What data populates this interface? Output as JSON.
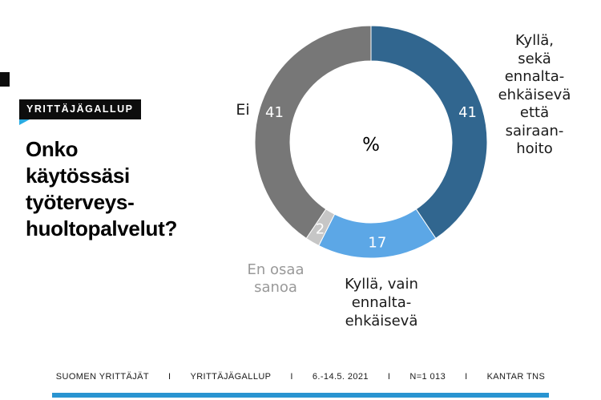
{
  "brand": {
    "badge_label": "YRITTÄJÄGALLUP",
    "accent_color": "#29ABE2",
    "badge_bg_color": "#0D0D0D"
  },
  "title": "Onko\nkäytössäsi\ntyöterveys-\nhuoltopalvelut?",
  "chart_data": {
    "type": "pie",
    "variant": "donut",
    "center_label": "%",
    "start_angle_deg": 0,
    "direction": "clockwise",
    "categories": [
      "Kyllä, sekä ennalta-ehkäisevä että sairaanhoito",
      "Kyllä, vain ennalta-ehkäisevä",
      "En osaa sanoa",
      "Ei"
    ],
    "values": [
      41,
      17,
      2,
      41
    ],
    "slices": [
      {
        "label": "Kyllä, sekä ennalta-ehkäisevä että sairaanhoito",
        "value": 41,
        "value_label": "41",
        "color": "#31668F"
      },
      {
        "label": "Kyllä, vain ennalta-ehkäisevä",
        "value": 17,
        "value_label": "17",
        "color": "#5CA7E6"
      },
      {
        "label": "En osaa sanoa",
        "value": 2,
        "value_label": "2",
        "color": "#C6C6C6"
      },
      {
        "label": "Ei",
        "value": 41,
        "value_label": "41",
        "color": "#777777"
      }
    ],
    "external_labels": {
      "right": "Kyllä,\nsekä\nennalta-\nehkäisevä\nettä\nsairaan-\nhoito",
      "bottom": "Kyllä, vain\nennalta-\nehkäisevä",
      "bottom_left": "En osaa\nsanoa",
      "left": "Ei"
    },
    "legend_position": "around",
    "value_label_color": "#FFFFFF",
    "muted_label_color": "#999999"
  },
  "footer": {
    "items": [
      "SUOMEN YRITTÄJÄT",
      "YRITTÄJÄGALLUP",
      "6.-14.5. 2021",
      "N=1 013",
      "KANTAR TNS"
    ],
    "separator": "I",
    "bar_color": "#2994D1"
  }
}
